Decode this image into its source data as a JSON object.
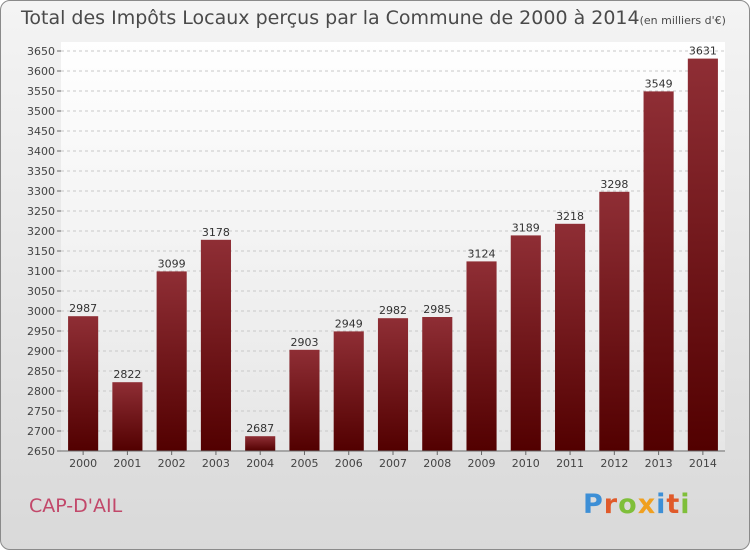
{
  "chart_data": {
    "type": "bar",
    "title": "Total des Impôts Locaux perçus par la Commune de 2000 à 2014",
    "unit_note": "(en milliers d'€)",
    "categories": [
      "2000",
      "2001",
      "2002",
      "2003",
      "2004",
      "2005",
      "2006",
      "2007",
      "2008",
      "2009",
      "2010",
      "2011",
      "2012",
      "2013",
      "2014"
    ],
    "values": [
      2987,
      2822,
      3099,
      3178,
      2687,
      2903,
      2949,
      2982,
      2985,
      3124,
      3189,
      3218,
      3298,
      3549,
      3631
    ],
    "ylim": [
      2650,
      3650
    ],
    "ytick_step": 50,
    "grid": true,
    "bar_color": "#7a1a24",
    "xlabel": "",
    "ylabel": ""
  },
  "commune_name": "CAP-D'AIL",
  "logo": {
    "text": "Proxiti",
    "letter_colors": [
      "#3d8fd6",
      "#e05a2a",
      "#7fbf3a",
      "#f0a020",
      "#3d8fd6",
      "#e05a2a",
      "#7fbf3a"
    ]
  }
}
